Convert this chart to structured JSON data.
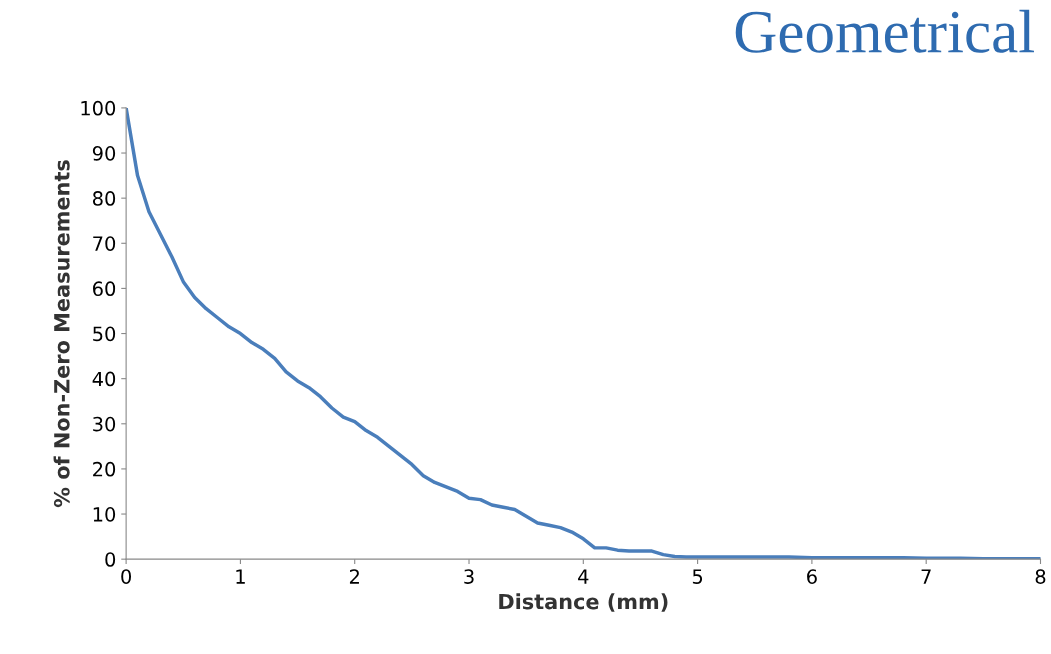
{
  "chart_data": {
    "type": "line",
    "xlabel": "Distance (mm)",
    "ylabel": "% of Non-Zero Measurements",
    "annotations": [
      "Geometrical"
    ],
    "xlim": [
      0,
      8
    ],
    "xticks": [
      0,
      1,
      2,
      3,
      4,
      5,
      6,
      7,
      8
    ],
    "ylim": [
      0,
      100
    ],
    "yticks": [
      0,
      10,
      20,
      30,
      40,
      50,
      60,
      70,
      80,
      90,
      100
    ],
    "grid": false,
    "legend": false,
    "line_style": "solid",
    "marker": "none",
    "series": [
      {
        "color": "#4a7ebb",
        "x": [
          0,
          0.1,
          0.2,
          0.3,
          0.4,
          0.5,
          0.6,
          0.7,
          0.8,
          0.9,
          1.0,
          1.1,
          1.2,
          1.3,
          1.4,
          1.5,
          1.6,
          1.7,
          1.8,
          1.9,
          2.0,
          2.1,
          2.2,
          2.3,
          2.4,
          2.5,
          2.6,
          2.7,
          2.8,
          2.9,
          3.0,
          3.1,
          3.2,
          3.3,
          3.4,
          3.5,
          3.6,
          3.7,
          3.8,
          3.9,
          4.0,
          4.1,
          4.2,
          4.3,
          4.4,
          4.5,
          4.6,
          4.7,
          4.8,
          4.9,
          5.0,
          5.5,
          5.8,
          6.0,
          6.8,
          7.0,
          7.3,
          7.5,
          8.0
        ],
        "values": [
          100,
          85,
          77,
          72,
          67,
          61.5,
          58,
          55.5,
          53.5,
          51.5,
          50,
          48,
          46.5,
          44.5,
          41.5,
          39.5,
          38,
          36,
          33.5,
          31.5,
          30.5,
          28.5,
          27,
          25,
          23,
          21,
          18.5,
          17,
          16,
          15,
          13.5,
          13.2,
          12,
          11.5,
          11,
          9.5,
          8,
          7.5,
          7,
          6,
          4.5,
          2.5,
          2.5,
          2,
          1.8,
          1.8,
          1.8,
          1,
          0.6,
          0.5,
          0.5,
          0.5,
          0.5,
          0.3,
          0.3,
          0.2,
          0.2,
          0.1,
          0.1
        ]
      }
    ]
  }
}
